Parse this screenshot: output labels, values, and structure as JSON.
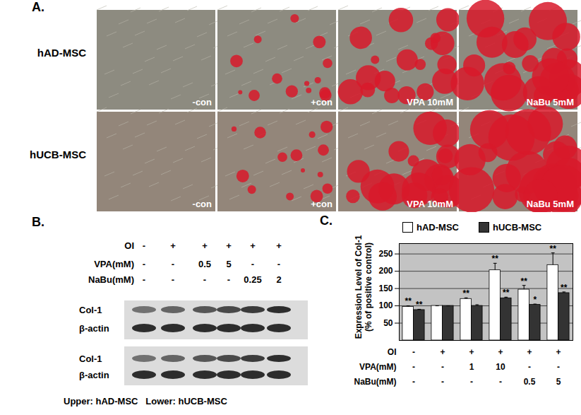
{
  "panel_a": {
    "label": "A.",
    "rows": [
      "hAD-MSC",
      "hUCB-MSC"
    ],
    "columns": [
      "-con",
      "+con",
      "VPA 10mM",
      "NaBu 5mM"
    ]
  },
  "panel_b": {
    "label": "B.",
    "conditions": [
      {
        "label": "OI",
        "values": [
          "-",
          "+",
          "+",
          "+",
          "+",
          "+"
        ]
      },
      {
        "label": "VPA(mM)",
        "values": [
          "-",
          "-",
          "0.5",
          "5",
          "-",
          "-"
        ]
      },
      {
        "label": "NaBu(mM)",
        "values": [
          "-",
          "-",
          "-",
          "-",
          "0.25",
          "2"
        ]
      }
    ],
    "bands": [
      "Col-1",
      "β-actin"
    ],
    "footer": [
      "Upper: hAD-MSC",
      "Lower: hUCB-MSC"
    ]
  },
  "chart_data": {
    "type": "bar",
    "panel_label": "C.",
    "y_label": [
      "Expression Level of Col-1",
      "(% of positive control)"
    ],
    "categories": [
      null,
      null,
      null,
      null,
      null,
      null
    ],
    "conditions": [
      {
        "label": "OI",
        "values": [
          "-",
          "+",
          "+",
          "+",
          "+",
          "+"
        ]
      },
      {
        "label": "VPA(mM)",
        "values": [
          "-",
          "-",
          "1",
          "10",
          "-",
          "-"
        ]
      },
      {
        "label": "NaBu(mM)",
        "values": [
          "-",
          "-",
          "-",
          "-",
          "0.5",
          "5"
        ]
      }
    ],
    "series": [
      {
        "name": "hAD-MSC",
        "color": "#ffffff",
        "values": [
          97,
          100,
          120,
          203,
          147,
          218
        ],
        "errors": [
          3,
          0,
          3,
          20,
          12,
          35
        ],
        "significance": [
          "**",
          null,
          "**",
          "**",
          "**",
          "**"
        ]
      },
      {
        "name": "hUCB-MSC",
        "color": "#333333",
        "values": [
          88,
          100,
          100,
          122,
          103,
          137
        ],
        "errors": [
          2,
          0,
          3,
          3,
          2,
          3
        ],
        "significance": [
          "**",
          null,
          null,
          "**",
          "*",
          "**"
        ]
      }
    ],
    "ylim": [
      0,
      280
    ],
    "yticks": [
      50,
      100,
      150,
      200,
      250
    ],
    "grid": true,
    "legend": "top"
  }
}
